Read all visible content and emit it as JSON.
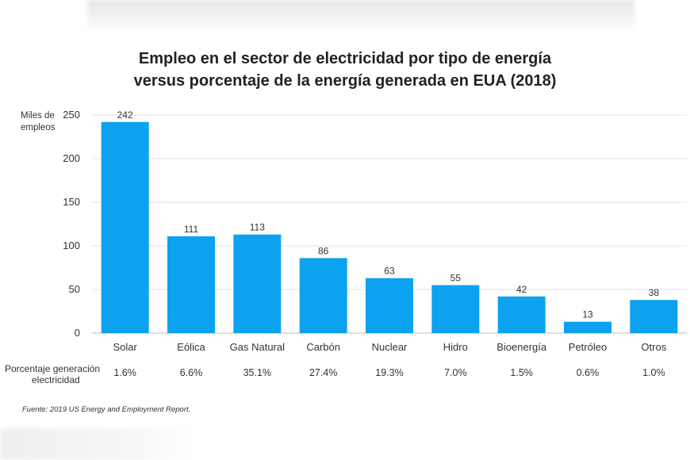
{
  "chart_data": {
    "type": "bar",
    "title_line1": "Empleo en el sector de electricidad por tipo de energía",
    "title_line2": "versus porcentaje de la energía generada en EUA (2018)",
    "ylabel_line1": "Miles de",
    "ylabel_line2": "empleos",
    "ylim": [
      0,
      250
    ],
    "yticks": [
      0,
      50,
      100,
      150,
      200,
      250
    ],
    "grid": true,
    "bar_color": "#0da2f0",
    "categories": [
      "Solar",
      "Eólica",
      "Gas Natural",
      "Carbón",
      "Nuclear",
      "Hidro",
      "Bioenergía",
      "Petróleo",
      "Otros"
    ],
    "values": [
      242,
      111,
      113,
      86,
      63,
      55,
      42,
      13,
      38
    ],
    "secondary_row": {
      "label_line1": "Porcentaje generación",
      "label_line2": "electricidad",
      "values": [
        "1.6%",
        "6.6%",
        "35.1%",
        "27.4%",
        "19.3%",
        "7.0%",
        "1.5%",
        "0.6%",
        "1.0%"
      ]
    },
    "source": "Fuente: 2019 US Energy and Employment Report."
  }
}
